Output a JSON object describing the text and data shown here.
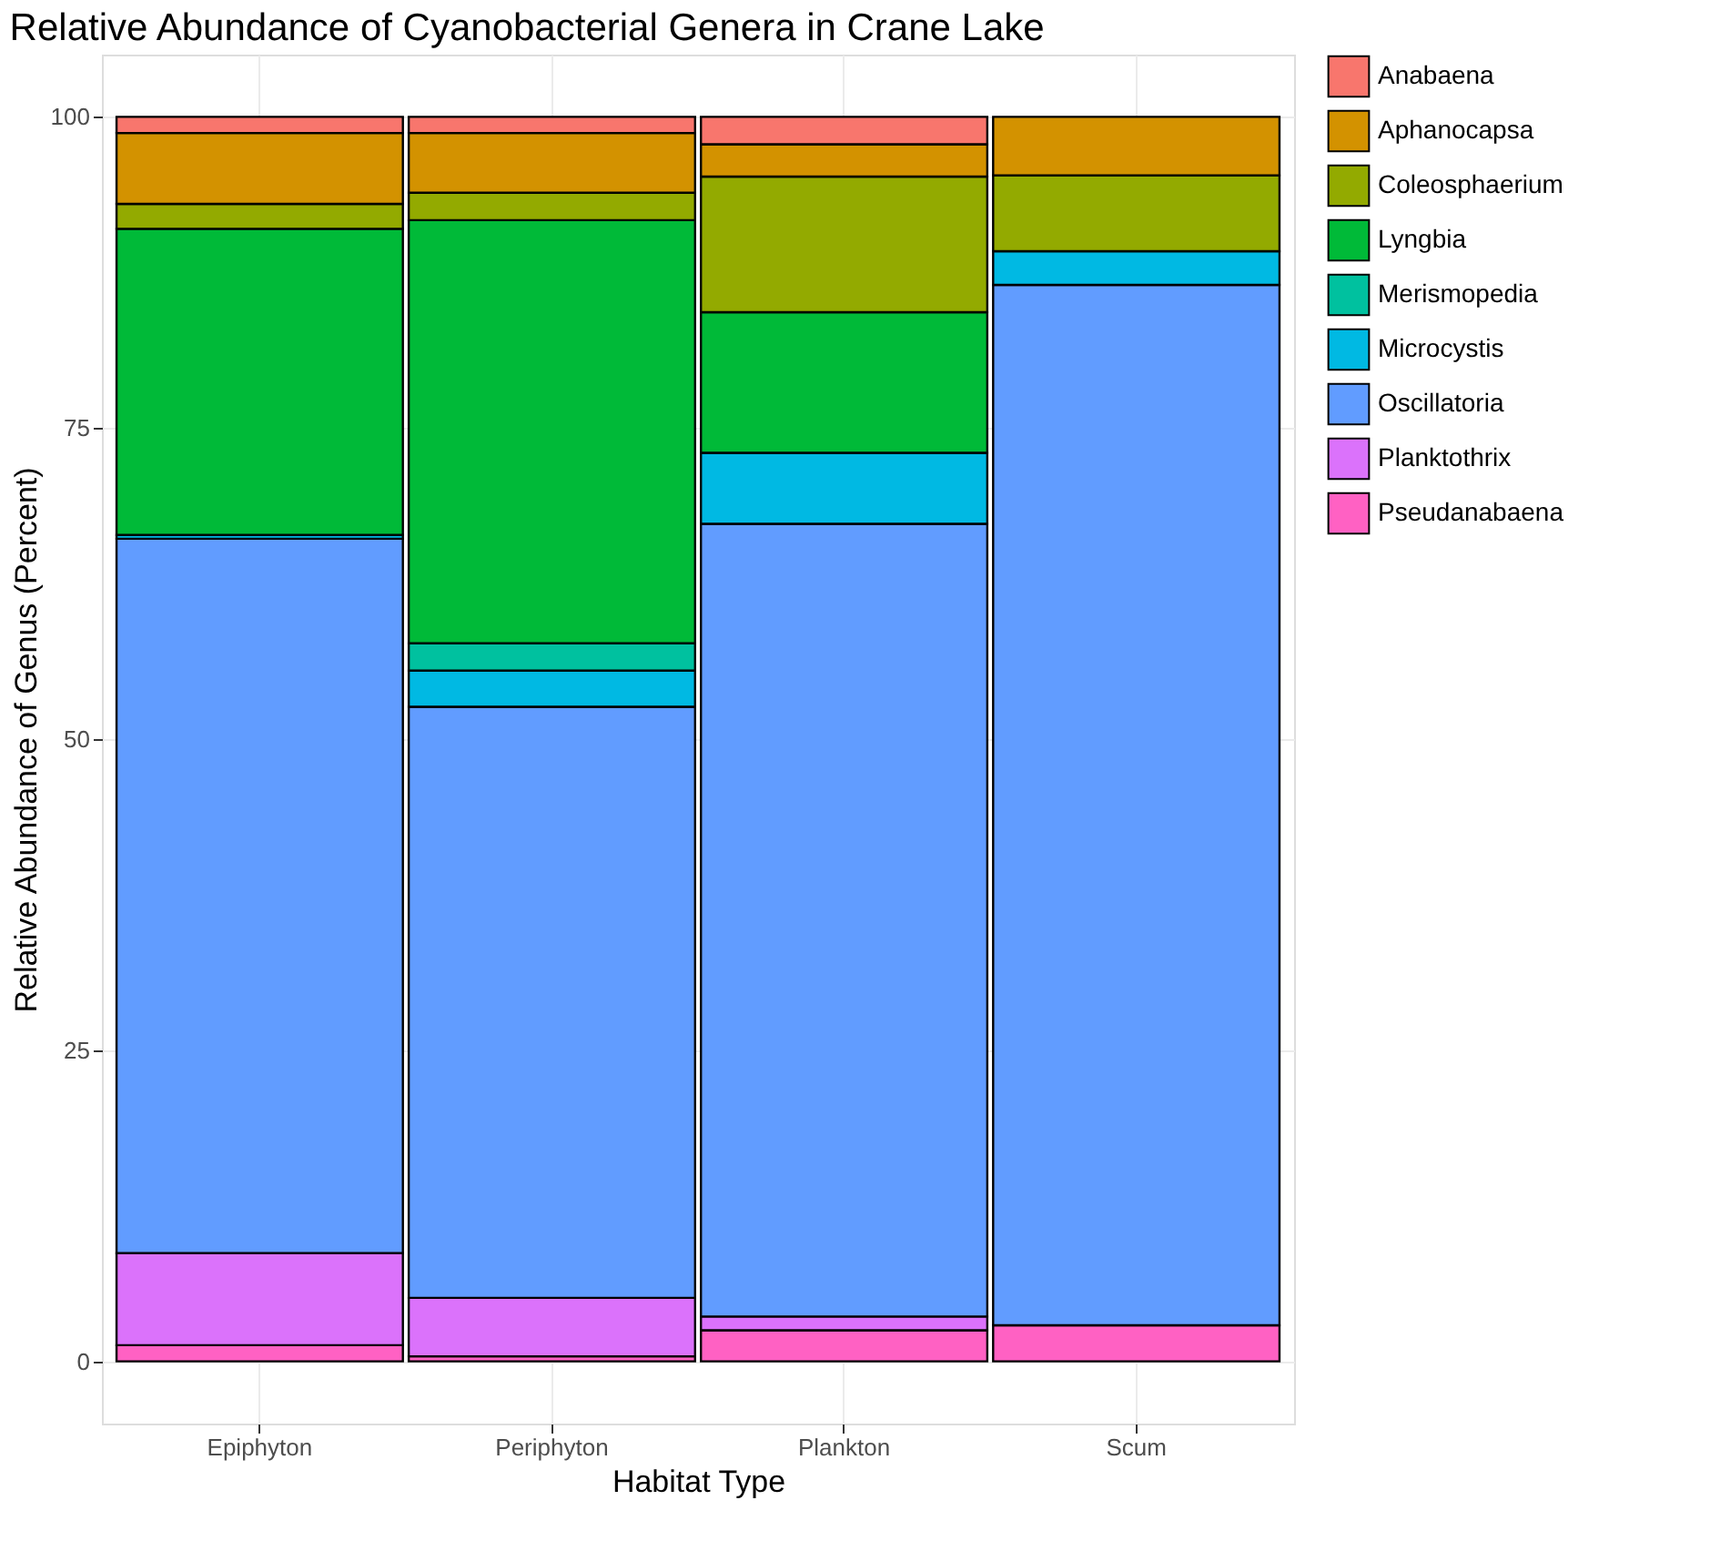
{
  "chart_data": {
    "type": "bar",
    "stacked": true,
    "title": "Relative Abundance of Cyanobacterial Genera in Crane Lake",
    "xlabel": "Habitat Type",
    "ylabel": "Relative Abundance of Genus (Percent)",
    "categories": [
      "Epiphyton",
      "Periphyton",
      "Plankton",
      "Scum"
    ],
    "ylim": [
      -5,
      105
    ],
    "yticks": [
      0,
      25,
      50,
      75,
      100
    ],
    "grid": true,
    "legend": "right",
    "series": [
      {
        "name": "Pseudanabaena",
        "color": "#ff61c3",
        "values": [
          1.3,
          0.4,
          2.5,
          2.9
        ]
      },
      {
        "name": "Planktothrix",
        "color": "#db72fb",
        "values": [
          7.4,
          4.7,
          1.1,
          null
        ]
      },
      {
        "name": "Oscillatoria",
        "color": "#619cff",
        "values": [
          57.4,
          47.5,
          63.7,
          83.6
        ]
      },
      {
        "name": "Microcystis",
        "color": "#00b9e3",
        "values": [
          0.3,
          2.9,
          5.7,
          2.7
        ]
      },
      {
        "name": "Merismopedia",
        "color": "#00c19f",
        "values": [
          null,
          2.2,
          null,
          null
        ]
      },
      {
        "name": "Lyngbia",
        "color": "#00ba38",
        "values": [
          24.6,
          34.0,
          11.3,
          null
        ]
      },
      {
        "name": "Coleosphaerium",
        "color": "#93aa00",
        "values": [
          2.0,
          2.2,
          10.9,
          6.1
        ]
      },
      {
        "name": "Aphanocapsa",
        "color": "#d39200",
        "values": [
          5.7,
          4.8,
          2.6,
          4.7
        ]
      },
      {
        "name": "Anabaena",
        "color": "#f8766d",
        "values": [
          1.3,
          1.3,
          2.2,
          null
        ]
      }
    ]
  }
}
